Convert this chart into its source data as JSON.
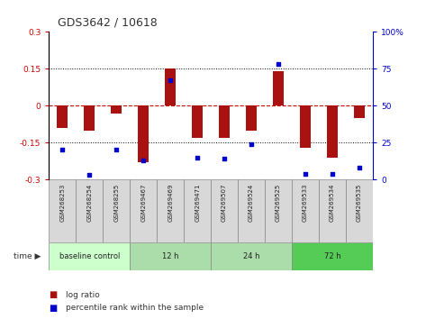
{
  "title": "GDS3642 / 10618",
  "samples": [
    "GSM268253",
    "GSM268254",
    "GSM268255",
    "GSM269467",
    "GSM269469",
    "GSM269471",
    "GSM269507",
    "GSM269524",
    "GSM269525",
    "GSM269533",
    "GSM269534",
    "GSM269535"
  ],
  "log_ratio": [
    -0.09,
    -0.1,
    -0.03,
    -0.23,
    0.15,
    -0.13,
    -0.13,
    -0.1,
    0.14,
    -0.17,
    -0.21,
    -0.05
  ],
  "percentile": [
    20,
    3,
    20,
    13,
    67,
    15,
    14,
    24,
    78,
    4,
    4,
    8
  ],
  "groups": [
    {
      "label": "baseline control",
      "start": 0,
      "end": 3
    },
    {
      "label": "12 h",
      "start": 3,
      "end": 6
    },
    {
      "label": "24 h",
      "start": 6,
      "end": 9
    },
    {
      "label": "72 h",
      "start": 9,
      "end": 12
    }
  ],
  "group_colors": [
    "#ccffcc",
    "#aaddaa",
    "#aaddaa",
    "#55cc55"
  ],
  "bar_color": "#aa1111",
  "dot_color": "#0000cc",
  "ylim_left": [
    -0.3,
    0.3
  ],
  "ylim_right": [
    0,
    100
  ],
  "yticks_left": [
    -0.3,
    -0.15,
    0,
    0.15,
    0.3
  ],
  "yticks_right": [
    0,
    25,
    50,
    75,
    100
  ],
  "hlines_dotted": [
    -0.15,
    0.15
  ],
  "hline_dashed": 0.0,
  "background_color": "#ffffff"
}
